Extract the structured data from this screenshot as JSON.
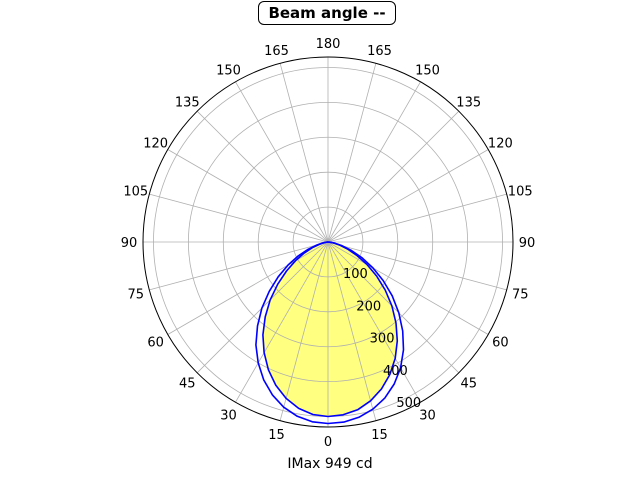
{
  "chart_data": {
    "type": "polar",
    "title": "Beam angle --",
    "xlabel": "IMax 949 cd",
    "angle_tick_labels": [
      "0",
      "15",
      "30",
      "45",
      "60",
      "75",
      "90",
      "105",
      "120",
      "135",
      "150",
      "165",
      "180",
      "165",
      "150",
      "135",
      "120",
      "105",
      "90",
      "75",
      "60",
      "45",
      "30",
      "15"
    ],
    "radial_tick_labels": [
      "100",
      "200",
      "300",
      "400",
      "500"
    ],
    "r_max": 530,
    "grid": true,
    "fill_color": "#ffff80",
    "series": [
      {
        "color": "#0000ff",
        "angles_deg": [
          0,
          5,
          10,
          15,
          20,
          25,
          30,
          35,
          40,
          45,
          50,
          55,
          60,
          65,
          70,
          75,
          80,
          85,
          90
        ],
        "r_left": [
          500,
          496,
          484,
          464,
          437,
          404,
          366,
          325,
          280,
          234,
          188,
          145,
          108,
          76,
          48,
          25,
          10,
          3,
          0
        ],
        "r_right": [
          500,
          497,
          488,
          471,
          448,
          419,
          385,
          346,
          303,
          259,
          214,
          170,
          129,
          92,
          61,
          36,
          17,
          5,
          0
        ]
      },
      {
        "color": "#0000ff",
        "angles_deg": [
          0,
          5,
          10,
          15,
          20,
          25,
          30,
          35,
          40,
          45,
          50,
          55,
          60,
          65,
          70,
          75,
          80,
          85,
          90
        ],
        "r_left": [
          520,
          517,
          507,
          490,
          466,
          436,
          400,
          360,
          314,
          268,
          220,
          174,
          132,
          94,
          60,
          33,
          14,
          4,
          0
        ],
        "r_right": [
          520,
          518,
          510,
          496,
          476,
          449,
          416,
          377,
          333,
          287,
          240,
          193,
          149,
          108,
          72,
          42,
          20,
          6,
          0
        ]
      }
    ]
  }
}
